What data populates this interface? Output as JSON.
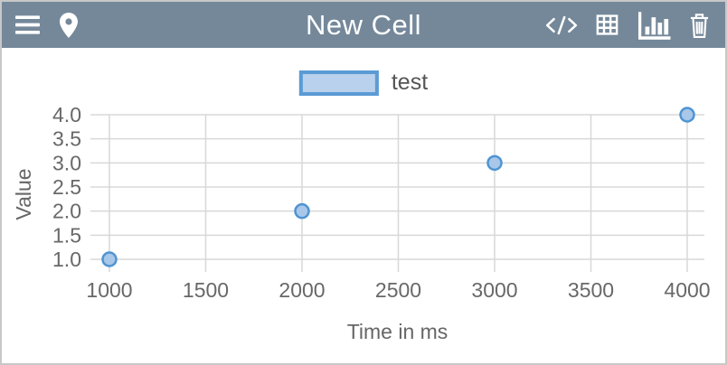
{
  "header": {
    "title": "New Cell",
    "icons": {
      "menu": "menu-icon",
      "location": "location-pin-icon",
      "code": "code-icon",
      "table": "table-icon",
      "chart": "bar-chart-icon",
      "trash": "trash-icon"
    }
  },
  "legend": {
    "label": "test",
    "swatch_fill": "#b9d1ec",
    "swatch_border": "#5b9bd5",
    "label_color": "#555555"
  },
  "chart_data": {
    "type": "scatter",
    "title": "",
    "xlabel": "Time in ms",
    "ylabel": "Value",
    "series": [
      {
        "name": "test",
        "x": [
          1000,
          2000,
          3000,
          4000
        ],
        "y": [
          1.0,
          2.0,
          3.0,
          4.0
        ]
      }
    ],
    "xlim": [
      1000,
      4000
    ],
    "ylim": [
      1.0,
      4.0
    ],
    "x_ticks": [
      1000,
      1500,
      2000,
      2500,
      3000,
      3500,
      4000
    ],
    "y_ticks": [
      1.0,
      1.5,
      2.0,
      2.5,
      3.0,
      3.5,
      4.0
    ],
    "grid": true,
    "legend_position": "top-center",
    "point_fill": "#a9c7e8",
    "point_border": "#4e94d3",
    "grid_color": "#d8d8d8",
    "tick_color": "#686868",
    "axis_title_color": "#666666"
  },
  "theme": {
    "header_bg": "#75889a",
    "header_fg": "#ffffff",
    "border_color": "#c8c8c8",
    "background": "#ffffff"
  }
}
